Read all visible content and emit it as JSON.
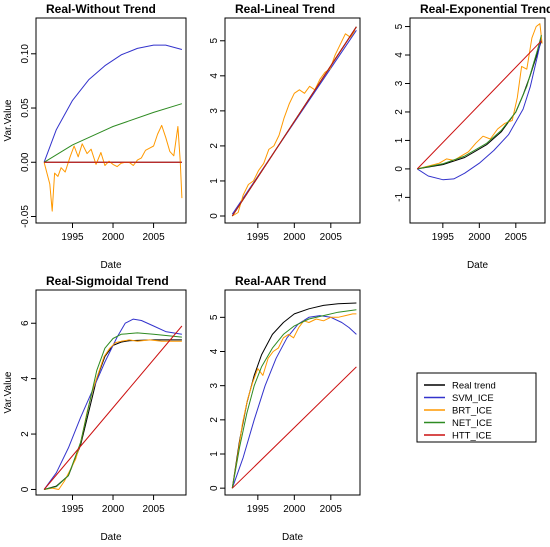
{
  "legend": {
    "entries": [
      {
        "label": "Real trend",
        "color": "#000000"
      },
      {
        "label": "SVM_ICE",
        "color": "#3333cc"
      },
      {
        "label": "BRT_ICE",
        "color": "#ff9900"
      },
      {
        "label": "NET_ICE",
        "color": "#2e8b22"
      },
      {
        "label": "HTT_ICE",
        "color": "#cc1111"
      }
    ]
  },
  "chart_data": [
    {
      "type": "line",
      "title": "Real-Without Trend",
      "xlabel": "Date",
      "ylabel": "Var.Value",
      "xlim": [
        1990.5,
        2009.0
      ],
      "ylim": [
        -0.056,
        0.133
      ],
      "xticks": [
        1995,
        2000,
        2005
      ],
      "yticks": [
        -0.05,
        0.0,
        0.05,
        0.1
      ],
      "ytick_labels": [
        "-0.05",
        "0.00",
        "0.05",
        "0.10"
      ],
      "series": [
        {
          "name": "Real trend",
          "color": "#000000",
          "x": [
            1991.5,
            2008.5
          ],
          "y": [
            0,
            0
          ]
        },
        {
          "name": "SVM_ICE",
          "color": "#3333cc",
          "x": [
            1991.5,
            1993,
            1995,
            1997,
            1999,
            2001,
            2003,
            2005,
            2006.5,
            2008.5
          ],
          "y": [
            0,
            0.03,
            0.057,
            0.076,
            0.089,
            0.099,
            0.105,
            0.108,
            0.108,
            0.104
          ]
        },
        {
          "name": "BRT_ICE",
          "color": "#ff9900",
          "x": [
            1991.5,
            1992.2,
            1992.5,
            1992.8,
            1993.2,
            1993.6,
            1994.1,
            1994.7,
            1995.2,
            1995.7,
            1996.2,
            1996.8,
            1997.3,
            1997.9,
            1998.5,
            1999.0,
            1999.5,
            2000.0,
            2000.5,
            2001.0,
            2001.5,
            2002.0,
            2002.5,
            2003.0,
            2003.5,
            2004.0,
            2004.5,
            2005.0,
            2005.5,
            2006.0,
            2006.5,
            2007.0,
            2007.5,
            2008.0,
            2008.3,
            2008.5
          ],
          "y": [
            0,
            -0.02,
            -0.045,
            -0.01,
            -0.013,
            -0.005,
            -0.009,
            0.005,
            0.015,
            0.005,
            0.017,
            0.008,
            0.012,
            -0.002,
            0.009,
            -0.003,
            0.001,
            -0.002,
            -0.004,
            -0.001,
            0.0,
            0.0,
            -0.003,
            0.002,
            0.004,
            0.011,
            0.013,
            0.015,
            0.026,
            0.034,
            0.023,
            0.01,
            0.006,
            0.033,
            0.0,
            -0.033
          ]
        },
        {
          "name": "NET_ICE",
          "color": "#2e8b22",
          "x": [
            1991.5,
            1995,
            2000,
            2005,
            2008.5
          ],
          "y": [
            0,
            0.016,
            0.033,
            0.046,
            0.054
          ]
        },
        {
          "name": "HTT_ICE",
          "color": "#cc1111",
          "x": [
            1991.5,
            2008.5
          ],
          "y": [
            0,
            0
          ]
        }
      ]
    },
    {
      "type": "line",
      "title": "Real-Lineal Trend",
      "xlabel": "",
      "ylabel": "",
      "xlim": [
        1990.5,
        2009.0
      ],
      "ylim": [
        -0.2,
        5.65
      ],
      "xticks": [
        1995,
        2000,
        2005
      ],
      "yticks": [
        0,
        1,
        2,
        3,
        4,
        5
      ],
      "ytick_labels": [
        "0",
        "1",
        "2",
        "3",
        "4",
        "5"
      ],
      "series": [
        {
          "name": "Real trend",
          "color": "#000000",
          "x": [
            1991.5,
            2008.5
          ],
          "y": [
            0,
            5.4
          ]
        },
        {
          "name": "SVM_ICE",
          "color": "#3333cc",
          "x": [
            1991.5,
            2008.5
          ],
          "y": [
            0.05,
            5.3
          ]
        },
        {
          "name": "BRT_ICE",
          "color": "#ff9900",
          "x": [
            1991.5,
            1992.3,
            1993.0,
            1993.7,
            1994.4,
            1995.1,
            1995.8,
            1996.5,
            1997.2,
            1997.9,
            1998.6,
            1999.3,
            2000.0,
            2000.7,
            2001.4,
            2002.1,
            2002.8,
            2003.5,
            2004.2,
            2004.9,
            2005.6,
            2006.3,
            2007.0,
            2007.7,
            2008.3
          ],
          "y": [
            0,
            0.1,
            0.6,
            0.9,
            1.0,
            1.3,
            1.5,
            1.9,
            2.0,
            2.3,
            2.8,
            3.2,
            3.5,
            3.6,
            3.5,
            3.7,
            3.6,
            3.9,
            4.1,
            4.2,
            4.6,
            4.9,
            5.2,
            5.1,
            5.3
          ]
        },
        {
          "name": "NET_ICE",
          "color": "#2e8b22",
          "x": [
            1991.5,
            2008.5
          ],
          "y": [
            0,
            5.4
          ]
        },
        {
          "name": "HTT_ICE",
          "color": "#cc1111",
          "x": [
            1991.5,
            2008.5
          ],
          "y": [
            0,
            5.4
          ]
        }
      ]
    },
    {
      "type": "line",
      "title": "Real-Exponential Trend",
      "xlabel": "Date",
      "ylabel": "",
      "xlim": [
        1990.5,
        2009.0
      ],
      "ylim": [
        -1.9,
        5.3
      ],
      "xticks": [
        1995,
        2000,
        2005
      ],
      "yticks": [
        -1,
        0,
        1,
        2,
        3,
        4,
        5
      ],
      "ytick_labels": [
        "-1",
        "0",
        "1",
        "2",
        "3",
        "4",
        "5"
      ],
      "series": [
        {
          "name": "Real trend",
          "color": "#000000",
          "x": [
            1991.5,
            1995,
            1998,
            2001,
            2003,
            2005,
            2006,
            2007,
            2008,
            2008.5
          ],
          "y": [
            0,
            0.15,
            0.4,
            0.85,
            1.3,
            2.0,
            2.6,
            3.3,
            4.1,
            4.5
          ]
        },
        {
          "name": "SVM_ICE",
          "color": "#3333cc",
          "x": [
            1991.5,
            1993,
            1995,
            1996.5,
            1998,
            2000,
            2002,
            2004,
            2006,
            2007,
            2008,
            2008.5
          ],
          "y": [
            0,
            -0.25,
            -0.38,
            -0.35,
            -0.15,
            0.2,
            0.65,
            1.2,
            2.1,
            2.9,
            4.0,
            4.6
          ]
        },
        {
          "name": "BRT_ICE",
          "color": "#ff9900",
          "x": [
            1991.5,
            1993,
            1994.5,
            1995.5,
            1996.5,
            1997.5,
            1998.5,
            1999.5,
            2000.5,
            2001.5,
            2002.5,
            2003.5,
            2004.5,
            2005.2,
            2005.8,
            2006.5,
            2007.2,
            2007.8,
            2008.3,
            2008.6
          ],
          "y": [
            0,
            0.1,
            0.2,
            0.35,
            0.3,
            0.45,
            0.6,
            0.9,
            1.15,
            1.05,
            1.4,
            1.6,
            1.7,
            2.5,
            3.6,
            3.5,
            4.6,
            5.0,
            5.1,
            4.4
          ]
        },
        {
          "name": "NET_ICE",
          "color": "#2e8b22",
          "x": [
            1991.5,
            1995,
            1998,
            2001,
            2003,
            2005,
            2006.5,
            2008,
            2008.5
          ],
          "y": [
            0,
            0.18,
            0.45,
            0.9,
            1.35,
            2.0,
            2.9,
            4.2,
            4.7
          ]
        },
        {
          "name": "HTT_ICE",
          "color": "#cc1111",
          "x": [
            1991.5,
            2008.5
          ],
          "y": [
            0,
            4.5
          ]
        }
      ]
    },
    {
      "type": "line",
      "title": "Real-Sigmoidal Trend",
      "xlabel": "Date",
      "ylabel": "Var.Value",
      "xlim": [
        1990.5,
        2009.0
      ],
      "ylim": [
        -0.2,
        7.2
      ],
      "xticks": [
        1995,
        2000,
        2005
      ],
      "yticks": [
        0,
        2,
        4,
        6
      ],
      "ytick_labels": [
        "0",
        "2",
        "4",
        "6"
      ],
      "series": [
        {
          "name": "Real trend",
          "color": "#000000",
          "x": [
            1991.5,
            1993,
            1994.5,
            1996,
            1997,
            1998,
            1999,
            2000,
            2001,
            2002,
            2003,
            2005,
            2008.5
          ],
          "y": [
            0,
            0.12,
            0.5,
            1.6,
            2.8,
            4.0,
            4.8,
            5.2,
            5.32,
            5.37,
            5.38,
            5.4,
            5.4
          ]
        },
        {
          "name": "SVM_ICE",
          "color": "#3333cc",
          "x": [
            1991.5,
            1993,
            1994.5,
            1996,
            1997.5,
            1999,
            2000.5,
            2001.5,
            2002.5,
            2003.5,
            2005,
            2006.5,
            2008.5
          ],
          "y": [
            0,
            0.6,
            1.5,
            2.6,
            3.6,
            4.6,
            5.5,
            6.0,
            6.15,
            6.1,
            5.9,
            5.7,
            5.6
          ]
        },
        {
          "name": "BRT_ICE",
          "color": "#ff9900",
          "x": [
            1991.5,
            1992.5,
            1993.3,
            1994.0,
            1994.7,
            1995.4,
            1996.1,
            1996.8,
            1997.5,
            1998.2,
            1998.9,
            1999.6,
            2000.3,
            2001.0,
            2002.0,
            2003.0,
            2004.5,
            2006.0,
            2008.5
          ],
          "y": [
            0,
            0.05,
            0.0,
            0.3,
            0.7,
            1.1,
            1.8,
            2.8,
            3.6,
            4.2,
            4.8,
            5.1,
            5.3,
            5.35,
            5.4,
            5.35,
            5.4,
            5.35,
            5.35
          ]
        },
        {
          "name": "NET_ICE",
          "color": "#2e8b22",
          "x": [
            1991.5,
            1993,
            1994.5,
            1996,
            1997,
            1998,
            1999,
            2000,
            2001,
            2003,
            2005,
            2008.5
          ],
          "y": [
            0,
            0.1,
            0.5,
            1.7,
            3.0,
            4.3,
            5.1,
            5.45,
            5.6,
            5.65,
            5.6,
            5.5
          ]
        },
        {
          "name": "HTT_ICE",
          "color": "#cc1111",
          "x": [
            1991.5,
            2008.5
          ],
          "y": [
            0,
            5.9
          ]
        }
      ]
    },
    {
      "type": "line",
      "title": "Real-AAR Trend",
      "xlabel": "Date",
      "ylabel": "",
      "xlim": [
        1990.5,
        2009.0
      ],
      "ylim": [
        -0.2,
        5.8
      ],
      "xticks": [
        1995,
        2000,
        2005
      ],
      "yticks": [
        0,
        1,
        2,
        3,
        4,
        5
      ],
      "ytick_labels": [
        "0",
        "1",
        "2",
        "3",
        "4",
        "5"
      ],
      "series": [
        {
          "name": "Real trend",
          "color": "#000000",
          "x": [
            1991.5,
            1992.5,
            1993.5,
            1994.5,
            1995.5,
            1997,
            1998.5,
            2000,
            2002,
            2004,
            2006,
            2008.5
          ],
          "y": [
            0,
            1.4,
            2.5,
            3.3,
            3.9,
            4.5,
            4.85,
            5.1,
            5.25,
            5.35,
            5.4,
            5.42
          ]
        },
        {
          "name": "SVM_ICE",
          "color": "#3333cc",
          "x": [
            1991.5,
            1993,
            1994.5,
            1996,
            1997.5,
            1999,
            2000.5,
            2002,
            2003.5,
            2005,
            2006.5,
            2007.5,
            2008.5
          ],
          "y": [
            0,
            0.9,
            2.0,
            3.0,
            3.8,
            4.4,
            4.8,
            5.0,
            5.05,
            5.0,
            4.85,
            4.7,
            4.5
          ]
        },
        {
          "name": "BRT_ICE",
          "color": "#ff9900",
          "x": [
            1991.5,
            1992.2,
            1992.9,
            1993.6,
            1994.3,
            1995.0,
            1995.7,
            1996.4,
            1997.1,
            1997.8,
            1998.5,
            1999.2,
            1999.9,
            2000.6,
            2001.3,
            2002.0,
            2003.0,
            2004.0,
            2005.0,
            2006.0,
            2007.0,
            2008.0,
            2008.5
          ],
          "y": [
            0,
            0.9,
            1.9,
            2.6,
            3.1,
            3.5,
            3.3,
            3.8,
            4.0,
            4.1,
            4.4,
            4.5,
            4.4,
            4.7,
            4.9,
            4.85,
            4.95,
            4.9,
            5.0,
            5.0,
            5.05,
            5.1,
            5.1
          ]
        },
        {
          "name": "NET_ICE",
          "color": "#2e8b22",
          "x": [
            1991.5,
            1992.5,
            1993.5,
            1994.5,
            1995.5,
            1997,
            1998.5,
            2000,
            2002,
            2004,
            2006,
            2008.5
          ],
          "y": [
            0,
            1.2,
            2.2,
            3.0,
            3.55,
            4.1,
            4.5,
            4.75,
            4.95,
            5.05,
            5.15,
            5.22
          ]
        },
        {
          "name": "HTT_ICE",
          "color": "#cc1111",
          "x": [
            1991.5,
            2008.5
          ],
          "y": [
            0,
            3.55
          ]
        }
      ]
    }
  ]
}
